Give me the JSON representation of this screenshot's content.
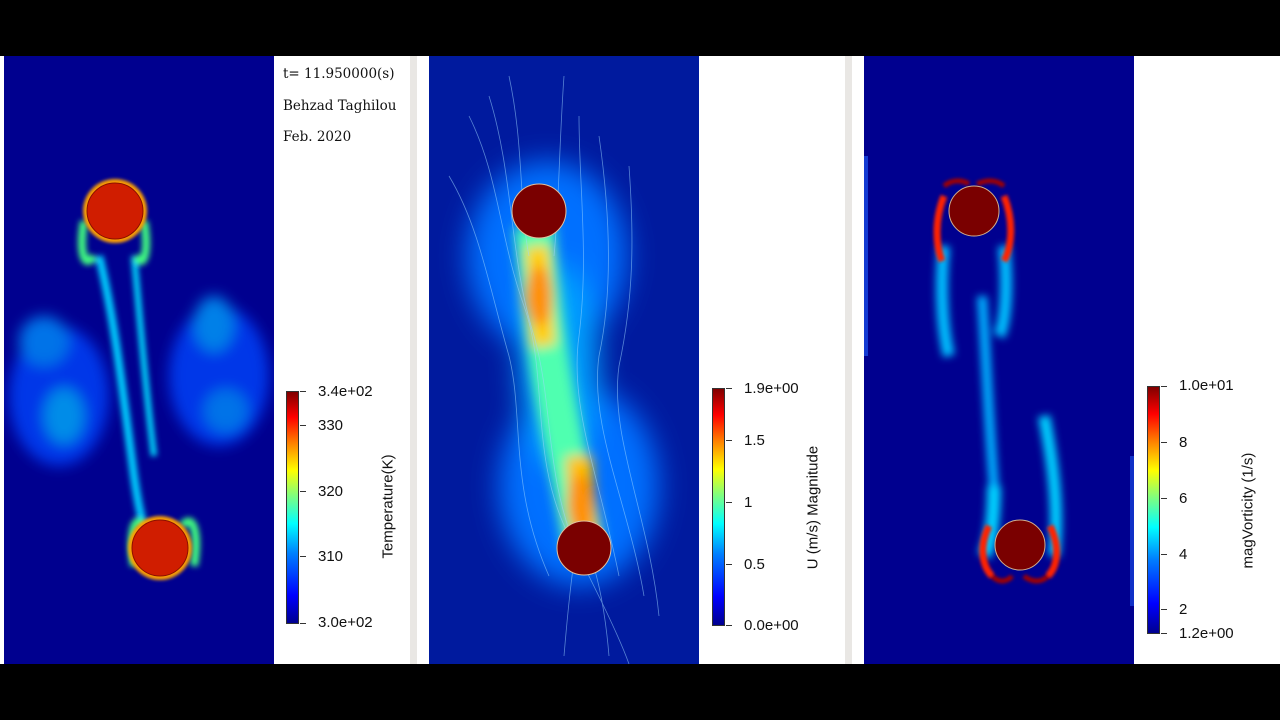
{
  "annotations": {
    "time": "t= 11.950000(s)",
    "author": "Behzad Taghilou",
    "date": "Feb. 2020"
  },
  "panels": [
    {
      "id": "temperature",
      "colorbar": {
        "title": "Temperature(K)",
        "ticks": [
          "3.4e+02",
          "330",
          "320",
          "310",
          "3.0e+02"
        ]
      }
    },
    {
      "id": "velocity",
      "colorbar": {
        "title": "U (m/s) Magnitude",
        "ticks": [
          "1.9e+00",
          "1.5",
          "1",
          "0.5",
          "0.0e+00"
        ]
      }
    },
    {
      "id": "vorticity",
      "colorbar": {
        "title": "magVorticity (1/s)",
        "ticks": [
          "1.0e+01",
          "8",
          "6",
          "4",
          "2",
          "1.2e+00"
        ]
      }
    }
  ],
  "colormap": {
    "low": "#00008f",
    "mid": "#00ffff",
    "high": "#800000"
  }
}
